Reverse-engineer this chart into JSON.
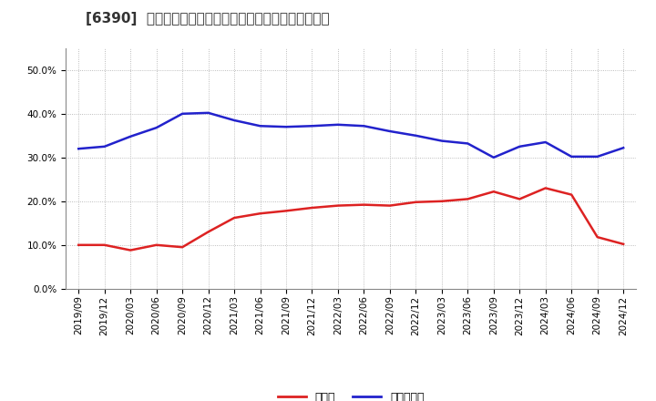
{
  "title": "[6390]  現顔金、有利子負債の総資産に対する比率の推移",
  "ylim": [
    0.0,
    0.55
  ],
  "yticks": [
    0.0,
    0.1,
    0.2,
    0.3,
    0.4,
    0.5
  ],
  "background_color": "#ffffff",
  "plot_bg_color": "#ffffff",
  "grid_color": "#aaaaaa",
  "dates": [
    "2019/09",
    "2019/12",
    "2020/03",
    "2020/06",
    "2020/09",
    "2020/12",
    "2021/03",
    "2021/06",
    "2021/09",
    "2021/12",
    "2022/03",
    "2022/06",
    "2022/09",
    "2022/12",
    "2023/03",
    "2023/06",
    "2023/09",
    "2023/12",
    "2024/03",
    "2024/06",
    "2024/09",
    "2024/12"
  ],
  "cash": [
    0.1,
    0.1,
    0.088,
    0.1,
    0.095,
    0.13,
    0.162,
    0.172,
    0.178,
    0.185,
    0.19,
    0.192,
    0.19,
    0.198,
    0.2,
    0.205,
    0.222,
    0.205,
    0.23,
    0.215,
    0.118,
    0.102
  ],
  "debt": [
    0.32,
    0.325,
    0.348,
    0.368,
    0.4,
    0.402,
    0.385,
    0.372,
    0.37,
    0.372,
    0.375,
    0.372,
    0.36,
    0.35,
    0.338,
    0.332,
    0.3,
    0.325,
    0.335,
    0.302,
    0.302,
    0.322
  ],
  "cash_color": "#dd2222",
  "debt_color": "#2222cc",
  "cash_label": "現顔金",
  "debt_label": "有利子負債",
  "title_fontsize": 11,
  "tick_fontsize": 7.5,
  "legend_fontsize": 9
}
